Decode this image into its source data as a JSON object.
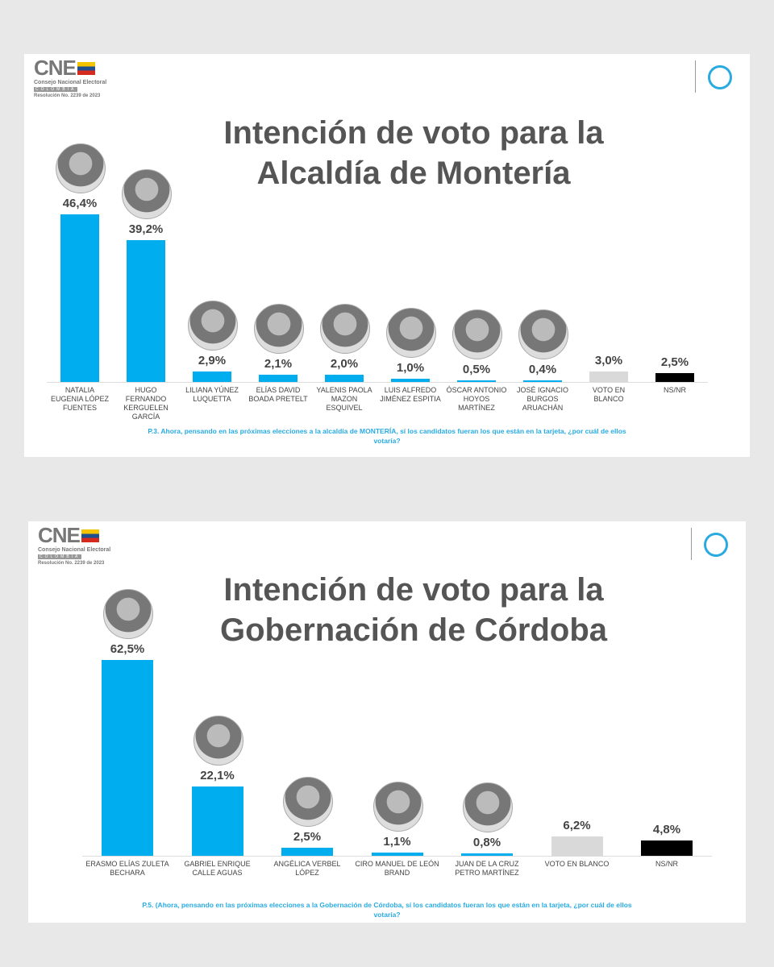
{
  "chart_data": [
    {
      "type": "bar",
      "logo_title": "CNE",
      "logo_subtitle": "Consejo Nacional Electoral",
      "logo_country": "COLOMBIA",
      "logo_note": "Resolución No. 2239 de 2023",
      "title": "Intención de voto para la Alcaldía de Montería",
      "categories": [
        "NATALIA EUGENIA LÓPEZ FUENTES",
        "HUGO FERNANDO KERGUELEN GARCÍA",
        "LILIANA YÚNEZ LUQUETTA",
        "ELÍAS DAVID BOADA PRETELT",
        "YALENIS PAOLA MAZON ESQUIVEL",
        "LUIS ALFREDO JIMÉNEZ ESPITIA",
        "ÓSCAR ANTONIO HOYOS MARTÍNEZ",
        "JOSÉ IGNACIO BURGOS ARUACHÁN",
        "VOTO EN BLANCO",
        "NS/NR"
      ],
      "values": [
        46.4,
        39.2,
        2.9,
        2.1,
        2.0,
        1.0,
        0.5,
        0.4,
        3.0,
        2.5
      ],
      "value_labels": [
        "46,4%",
        "39,2%",
        "2,9%",
        "2,1%",
        "2,0%",
        "1,0%",
        "0,5%",
        "0,4%",
        "3,0%",
        "2,5%"
      ],
      "colors": [
        "#00aeef",
        "#00aeef",
        "#00aeef",
        "#00aeef",
        "#00aeef",
        "#00aeef",
        "#00aeef",
        "#00aeef",
        "#d9d9d9",
        "#000000"
      ],
      "note": "P.3.  Ahora, pensando en las próximas elecciones a la alcaldía de MONTERÍA, sí los candidatos fueran los que están en la tarjeta, ¿por cuál de ellos votaría?"
    },
    {
      "type": "bar",
      "logo_title": "CNE",
      "logo_subtitle": "Consejo Nacional Electoral",
      "logo_country": "COLOMBIA",
      "logo_note": "Resolución No. 2239 de 2023",
      "title": "Intención de voto para la Gobernación de Córdoba",
      "categories": [
        "ERASMO ELÍAS ZULETA BECHARA",
        "GABRIEL ENRIQUE CALLE AGUAS",
        "ANGÉLICA VERBEL LÓPEZ",
        "CIRO MANUEL DE LEÓN BRAND",
        "JUAN DE LA CRUZ PETRO MARTÍNEZ",
        "VOTO EN BLANCO",
        "NS/NR"
      ],
      "values": [
        62.5,
        22.1,
        2.5,
        1.1,
        0.8,
        6.2,
        4.8
      ],
      "value_labels": [
        "62,5%",
        "22,1%",
        "2,5%",
        "1,1%",
        "0,8%",
        "6,2%",
        "4,8%"
      ],
      "colors": [
        "#00aeef",
        "#00aeef",
        "#00aeef",
        "#00aeef",
        "#00aeef",
        "#d9d9d9",
        "#000000"
      ],
      "note": "P.5. (Ahora, pensando en las próximas elecciones a la Gobernación de Córdoba, sí los candidatos fueran los que están en la tarjeta, ¿por cuál de ellos votaría?"
    }
  ]
}
